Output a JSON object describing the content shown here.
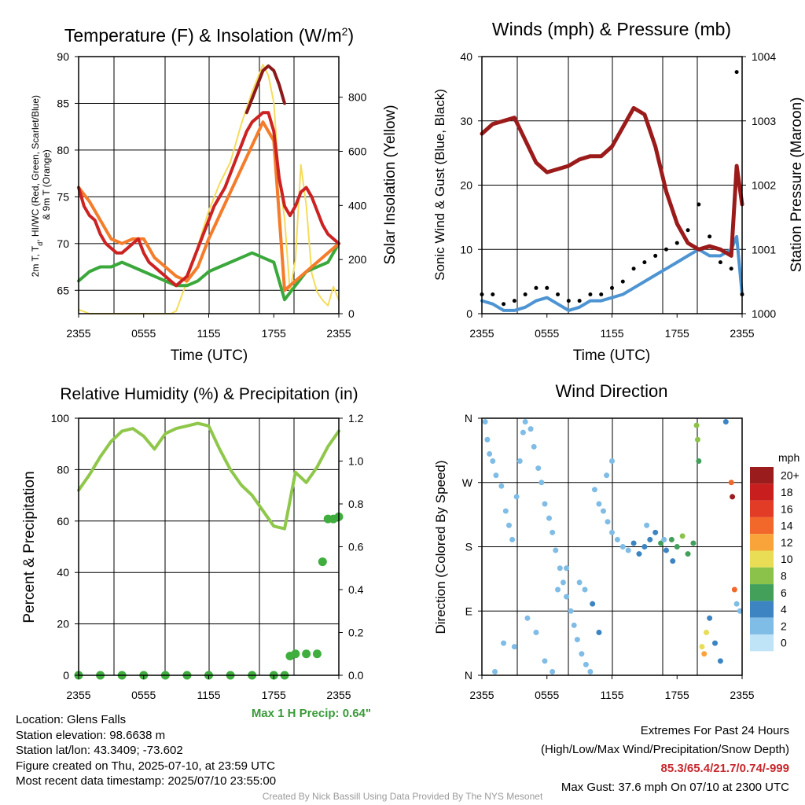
{
  "colors": {
    "temp_2m": "#cc2222",
    "temp_9m": "#f47c2a",
    "heat_index": "#8b1a1a",
    "dewpoint": "#3aa83a",
    "insolation": "#f5dc5a",
    "wind_sustained": "#4d94d2",
    "wind_gust": "#000000",
    "pressure": "#9b1b1b",
    "humidity": "#8fc74a",
    "precip": "#3fae3f",
    "max_precip_text": "#3a9a3a",
    "extremes_text": "#c8262b",
    "credit_text": "#9a9a9a"
  },
  "chart_data": [
    {
      "id": "temp",
      "type": "line",
      "title": "Temperature (F) & Insolation (W/m²)",
      "xlabel": "Time (UTC)",
      "ylabel": "2m T, Td, HI/WC (Red, Green, Scarlet/Blue) & 9m T (Orange)",
      "y2label": "Solar Insolation (Yellow)",
      "xticks": [
        "2355",
        "0555",
        "1155",
        "1755",
        "2355"
      ],
      "yticks": [
        "65",
        "70",
        "75",
        "80",
        "85",
        "90"
      ],
      "y2ticks": [
        "0",
        "200",
        "400",
        "600",
        "800"
      ],
      "ylim": [
        62.5,
        90
      ],
      "y2lim": [
        0,
        950
      ],
      "x_unit": "hours since 2355 UTC",
      "series": [
        {
          "name": "2m T",
          "axis": "y",
          "x": [
            0,
            0.5,
            1,
            1.5,
            2,
            2.5,
            3,
            3.5,
            4,
            4.5,
            5,
            5.5,
            6,
            6.5,
            7,
            7.5,
            8,
            8.5,
            9,
            9.5,
            10,
            10.5,
            11,
            11.5,
            12,
            12.5,
            13,
            13.5,
            14,
            14.5,
            15,
            15.5,
            16,
            16.5,
            17,
            17.5,
            18,
            18.5,
            19,
            19.5,
            20,
            20.5,
            21,
            21.5,
            22,
            22.5,
            23,
            23.5,
            24
          ],
          "values": [
            76,
            74,
            73,
            72.5,
            71,
            70,
            69.5,
            69,
            69,
            69.5,
            70,
            70.5,
            69,
            68,
            67.5,
            67,
            66.5,
            66,
            65.5,
            66,
            66.5,
            68,
            69.5,
            71,
            72.5,
            74,
            75,
            76,
            77.5,
            79,
            80.5,
            82,
            83,
            83.5,
            84,
            84,
            82,
            77,
            74,
            73,
            74,
            75.5,
            76,
            75,
            73.5,
            72,
            71,
            70.5,
            70
          ]
        },
        {
          "name": "9m T",
          "axis": "y",
          "x": [
            0,
            1,
            2,
            3,
            4,
            5,
            6,
            7,
            8,
            9,
            10,
            11,
            12,
            13,
            14,
            15,
            16,
            17,
            18,
            19,
            20,
            21,
            22,
            23,
            24
          ],
          "values": [
            76,
            74.5,
            72.5,
            70.5,
            70,
            70.5,
            70.5,
            68.5,
            67.5,
            66.5,
            66,
            67.5,
            70.5,
            73,
            75.5,
            78,
            80.5,
            83,
            81,
            65,
            66,
            67,
            68,
            69,
            70
          ]
        },
        {
          "name": "HI/WC",
          "axis": "y",
          "x": [
            15.5,
            16,
            16.5,
            17,
            17.5,
            18,
            18.5,
            19
          ],
          "values": [
            84,
            85.5,
            87,
            88.5,
            89,
            88.5,
            87,
            85
          ]
        },
        {
          "name": "Td",
          "axis": "y",
          "x": [
            0,
            1,
            2,
            3,
            4,
            5,
            6,
            7,
            8,
            9,
            10,
            11,
            12,
            13,
            14,
            15,
            16,
            17,
            18,
            19,
            20,
            21,
            22,
            23,
            24
          ],
          "values": [
            66,
            67,
            67.5,
            67.5,
            68,
            67.5,
            67,
            66.5,
            66,
            65.5,
            65.5,
            66,
            67,
            67.5,
            68,
            68.5,
            69,
            68.5,
            68,
            64,
            65.5,
            67,
            67.5,
            68,
            70
          ]
        },
        {
          "name": "Solar Insolation",
          "axis": "y2",
          "x": [
            0,
            1,
            2,
            3,
            4,
            5,
            6,
            7,
            8,
            8.5,
            9,
            10,
            11,
            12,
            13,
            14,
            15,
            16,
            17,
            17.5,
            18,
            18.5,
            19,
            19.5,
            20,
            20.5,
            21,
            21.5,
            22,
            22.5,
            23,
            23.5,
            24
          ],
          "values": [
            15,
            0,
            0,
            0,
            0,
            0,
            0,
            0,
            0,
            0,
            10,
            120,
            250,
            380,
            480,
            560,
            700,
            820,
            920,
            880,
            780,
            500,
            350,
            80,
            200,
            550,
            400,
            150,
            80,
            50,
            30,
            100,
            50
          ]
        }
      ]
    },
    {
      "id": "wind",
      "type": "line",
      "title": "Winds (mph) & Pressure (mb)",
      "xlabel": "Time (UTC)",
      "ylabel": "Sonic Wind & Gust (Blue, Black)",
      "y2label": "Station Pressure (Maroon)",
      "xticks": [
        "2355",
        "0555",
        "1155",
        "1755",
        "2355"
      ],
      "yticks": [
        "0",
        "10",
        "20",
        "30",
        "40"
      ],
      "y2ticks": [
        "1000",
        "1001",
        "1002",
        "1003",
        "1004"
      ],
      "ylim": [
        0,
        40
      ],
      "y2lim": [
        1000,
        1004
      ],
      "x_unit": "hours since 2355 UTC",
      "series": [
        {
          "name": "Sonic Wind",
          "axis": "y",
          "x": [
            0,
            1,
            2,
            3,
            4,
            5,
            6,
            7,
            8,
            9,
            10,
            11,
            12,
            13,
            14,
            15,
            16,
            17,
            18,
            19,
            20,
            21,
            22,
            23,
            23.5,
            24
          ],
          "values": [
            2,
            1.5,
            0.5,
            0.5,
            1,
            2,
            2.5,
            1.5,
            0.5,
            1,
            2,
            2,
            2.5,
            3,
            4,
            5,
            6,
            7,
            8,
            9,
            10,
            9,
            9,
            10,
            12,
            3
          ]
        },
        {
          "name": "Gust",
          "axis": "y",
          "x": [
            0,
            1,
            2,
            3,
            4,
            5,
            6,
            7,
            8,
            9,
            10,
            11,
            12,
            13,
            14,
            15,
            16,
            17,
            18,
            19,
            20,
            21,
            22,
            23,
            23.5,
            24
          ],
          "values": [
            3,
            3,
            1.5,
            2,
            3,
            4,
            4,
            3,
            2,
            2,
            3,
            3,
            4,
            5,
            7,
            8,
            9,
            10,
            11,
            13,
            17,
            12,
            8,
            7,
            37.6,
            3
          ]
        },
        {
          "name": "Station Pressure",
          "axis": "y2",
          "x": [
            0,
            1,
            2,
            3,
            4,
            5,
            6,
            7,
            8,
            9,
            10,
            11,
            12,
            13,
            14,
            15,
            16,
            17,
            18,
            19,
            20,
            21,
            22,
            23,
            23.5,
            24
          ],
          "values": [
            1002.8,
            1002.95,
            1003.0,
            1003.05,
            1002.7,
            1002.35,
            1002.2,
            1002.25,
            1002.3,
            1002.4,
            1002.45,
            1002.45,
            1002.6,
            1002.9,
            1003.2,
            1003.1,
            1002.6,
            1001.9,
            1001.4,
            1001.1,
            1001.0,
            1001.05,
            1001.0,
            1000.9,
            1002.3,
            1001.7
          ]
        }
      ]
    },
    {
      "id": "rh",
      "type": "line",
      "title": "Relative Humidity (%) & Precipitation (in)",
      "xlabel": "",
      "ylabel": "Percent & Precipitation",
      "xticks": [
        "2355",
        "0555",
        "1155",
        "1755",
        "2355"
      ],
      "yticks": [
        "0",
        "20",
        "40",
        "60",
        "80",
        "100"
      ],
      "y2ticks": [
        "0.0",
        "0.2",
        "0.4",
        "0.6",
        "0.8",
        "1.0",
        "1.2"
      ],
      "ylim": [
        0,
        100
      ],
      "y2lim": [
        0,
        1.2
      ],
      "x_unit": "hours since 2355 UTC",
      "series": [
        {
          "name": "Relative Humidity",
          "axis": "y",
          "x": [
            0,
            1,
            2,
            3,
            4,
            5,
            6,
            7,
            8,
            9,
            10,
            11,
            12,
            13,
            14,
            15,
            16,
            17,
            18,
            19,
            20,
            21,
            22,
            23,
            24
          ],
          "values": [
            72,
            78,
            85,
            91,
            95,
            96,
            93,
            88,
            94,
            96,
            97,
            98,
            97,
            88,
            80,
            74,
            70,
            64,
            58,
            57,
            79,
            75,
            81,
            89,
            95
          ]
        },
        {
          "name": "Precipitation",
          "axis": "y2",
          "x": [
            0,
            2,
            4,
            6,
            8,
            10,
            12,
            14,
            16,
            18,
            19,
            19.5,
            20,
            21,
            22,
            22.5,
            23,
            23.5,
            24
          ],
          "values": [
            0,
            0,
            0,
            0,
            0,
            0,
            0,
            0,
            0,
            0,
            0,
            0.09,
            0.1,
            0.1,
            0.1,
            0.53,
            0.73,
            0.73,
            0.74
          ]
        }
      ]
    },
    {
      "id": "direction",
      "type": "scatter",
      "title": "Wind Direction",
      "ylabel": "Direction (Colored By Speed)",
      "xticks": [
        "2355",
        "0555",
        "1155",
        "1755",
        "2355"
      ],
      "yticks": [
        "N",
        "E",
        "S",
        "W",
        "N"
      ],
      "ylim": [
        0,
        360
      ],
      "x_unit": "hours since 2355 UTC",
      "colorbar": {
        "title": "mph",
        "labels": [
          "20+",
          "18",
          "16",
          "14",
          "12",
          "10",
          "8",
          "6",
          "4",
          "2",
          "0"
        ],
        "colors": [
          "#9b1c1c",
          "#c81e1e",
          "#e23b26",
          "#f2682b",
          "#f9a43a",
          "#e8dd55",
          "#8bc34a",
          "#42a05a",
          "#3d85c2",
          "#7fbce6",
          "#bfe3f7"
        ]
      },
      "points": [
        [
          0.3,
          355,
          1
        ],
        [
          0.5,
          330,
          1
        ],
        [
          0.7,
          310,
          1
        ],
        [
          1.0,
          300,
          1
        ],
        [
          1.3,
          280,
          1
        ],
        [
          1.8,
          265,
          1
        ],
        [
          2.2,
          230,
          1
        ],
        [
          2.5,
          210,
          1
        ],
        [
          2.8,
          190,
          1
        ],
        [
          3.2,
          250,
          1
        ],
        [
          3.5,
          300,
          1
        ],
        [
          3.8,
          340,
          1
        ],
        [
          4.0,
          355,
          1
        ],
        [
          4.5,
          345,
          1
        ],
        [
          4.8,
          320,
          1
        ],
        [
          5.2,
          290,
          1
        ],
        [
          5.5,
          270,
          1
        ],
        [
          5.8,
          240,
          1
        ],
        [
          6.2,
          220,
          1
        ],
        [
          6.5,
          200,
          1
        ],
        [
          6.8,
          175,
          1
        ],
        [
          7.2,
          150,
          1
        ],
        [
          7.5,
          130,
          1
        ],
        [
          7.8,
          110,
          1
        ],
        [
          8.2,
          90,
          1
        ],
        [
          8.5,
          70,
          1
        ],
        [
          8.8,
          50,
          1
        ],
        [
          9.2,
          30,
          1
        ],
        [
          9.6,
          15,
          1
        ],
        [
          10.0,
          5,
          1
        ],
        [
          10.4,
          260,
          1
        ],
        [
          10.8,
          240,
          1
        ],
        [
          11.2,
          230,
          1
        ],
        [
          11.6,
          215,
          1
        ],
        [
          12.0,
          200,
          1
        ],
        [
          12.5,
          190,
          1
        ],
        [
          13.0,
          180,
          2
        ],
        [
          13.5,
          175,
          2
        ],
        [
          14.0,
          185,
          3
        ],
        [
          14.5,
          170,
          3
        ],
        [
          15.0,
          180,
          4
        ],
        [
          15.5,
          190,
          4
        ],
        [
          16.0,
          200,
          4
        ],
        [
          16.5,
          185,
          5
        ],
        [
          17.0,
          175,
          4
        ],
        [
          17.5,
          190,
          5
        ],
        [
          18.0,
          180,
          6
        ],
        [
          18.5,
          195,
          7
        ],
        [
          19.0,
          170,
          5
        ],
        [
          19.5,
          185,
          6
        ],
        [
          19.8,
          350,
          7
        ],
        [
          19.9,
          330,
          7
        ],
        [
          20.0,
          300,
          6
        ],
        [
          20.3,
          40,
          10
        ],
        [
          20.5,
          30,
          12
        ],
        [
          20.7,
          60,
          9
        ],
        [
          21.0,
          80,
          4
        ],
        [
          21.5,
          45,
          3
        ],
        [
          22.0,
          20,
          4
        ],
        [
          22.5,
          355,
          4
        ],
        [
          23.0,
          270,
          13
        ],
        [
          23.1,
          250,
          20
        ],
        [
          23.3,
          120,
          14
        ],
        [
          23.5,
          100,
          2
        ],
        [
          23.8,
          90,
          2
        ],
        [
          1.2,
          5,
          1
        ],
        [
          2.0,
          45,
          1
        ],
        [
          3.0,
          40,
          2
        ],
        [
          4.2,
          80,
          1
        ],
        [
          5.0,
          60,
          2
        ],
        [
          5.8,
          20,
          1
        ],
        [
          6.5,
          5,
          1
        ],
        [
          7.0,
          120,
          1
        ],
        [
          7.8,
          150,
          1
        ],
        [
          9.0,
          130,
          2
        ],
        [
          9.5,
          120,
          2
        ],
        [
          10.2,
          100,
          3
        ],
        [
          10.8,
          60,
          3
        ],
        [
          11.5,
          280,
          1
        ],
        [
          12.0,
          300,
          1
        ],
        [
          15.2,
          210,
          2
        ],
        [
          16.8,
          190,
          2
        ],
        [
          17.6,
          160,
          3
        ]
      ]
    }
  ],
  "info": {
    "location": "Location: Glens Falls",
    "elevation": "Station elevation: 98.6638 m",
    "latlon": "Station lat/lon: 43.3409; -73.602",
    "created": "Figure created on Thu, 2025-07-10, at 23:59 UTC",
    "recent": "Most recent data timestamp: 2025/07/10 23:55:00"
  },
  "max_precip": "Max 1 H Precip: 0.64\"",
  "extremes": {
    "title": "Extremes For Past 24 Hours",
    "subtitle": "(High/Low/Max Wind/Precipitation/Snow Depth)",
    "values": "85.3/65.4/21.7/0.74/-999",
    "gust": "Max Gust: 37.6 mph On 07/10 at 2300 UTC"
  },
  "credit": "Created By Nick Bassill Using Data Provided By The NYS Mesonet"
}
